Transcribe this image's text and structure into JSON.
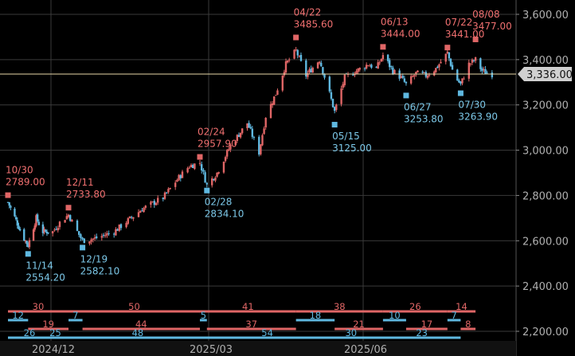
{
  "chart_data": {
    "type": "candlestick",
    "title": "",
    "xlabel": "",
    "ylabel": "",
    "ylim": [
      2175,
      3640
    ],
    "y_ticks": [
      "3,600.00",
      "3,400.00",
      "3,200.00",
      "3,000.00",
      "2,800.00",
      "2,600.00",
      "2,400.00",
      "2,200.00"
    ],
    "y_tick_values": [
      3600,
      3400,
      3200,
      3000,
      2800,
      2600,
      2400,
      2200
    ],
    "x_ticks": [
      "2024/12",
      "2025/03",
      "2025/06"
    ],
    "current_price_label": "3,336.00",
    "current_price": 3336,
    "colors": {
      "up": "#e06666",
      "down": "#5fb8e0",
      "current_line": "#e8d8a8",
      "current_label_bg": "#d0d0d0"
    },
    "grid": true,
    "close_series": [
      {
        "date": "2024/10/30",
        "close": 2770
      },
      {
        "date": "2024/11/05",
        "close": 2690
      },
      {
        "date": "2024/11/10",
        "close": 2620
      },
      {
        "date": "2024/11/14",
        "close": 2580
      },
      {
        "date": "2024/11/20",
        "close": 2700
      },
      {
        "date": "2024/11/25",
        "close": 2640
      },
      {
        "date": "2024/12/02",
        "close": 2640
      },
      {
        "date": "2024/12/06",
        "close": 2680
      },
      {
        "date": "2024/12/11",
        "close": 2715
      },
      {
        "date": "2024/12/16",
        "close": 2640
      },
      {
        "date": "2024/12/19",
        "close": 2600
      },
      {
        "date": "2024/12/26",
        "close": 2610
      },
      {
        "date": "2025/01/06",
        "close": 2640
      },
      {
        "date": "2025/01/14",
        "close": 2690
      },
      {
        "date": "2025/01/22",
        "close": 2740
      },
      {
        "date": "2025/02/03",
        "close": 2790
      },
      {
        "date": "2025/02/12",
        "close": 2880
      },
      {
        "date": "2025/02/18",
        "close": 2930
      },
      {
        "date": "2025/02/24",
        "close": 2945
      },
      {
        "date": "2025/02/28",
        "close": 2845
      },
      {
        "date": "2025/03/06",
        "close": 2900
      },
      {
        "date": "2025/03/14",
        "close": 3020
      },
      {
        "date": "2025/03/24",
        "close": 3120
      },
      {
        "date": "2025/03/31",
        "close": 2990
      },
      {
        "date": "2025/04/04",
        "close": 3150
      },
      {
        "date": "2025/04/10",
        "close": 3250
      },
      {
        "date": "2025/04/16",
        "close": 3380
      },
      {
        "date": "2025/04/22",
        "close": 3440
      },
      {
        "date": "2025/04/28",
        "close": 3330
      },
      {
        "date": "2025/05/06",
        "close": 3400
      },
      {
        "date": "2025/05/12",
        "close": 3250
      },
      {
        "date": "2025/05/15",
        "close": 3170
      },
      {
        "date": "2025/05/21",
        "close": 3320
      },
      {
        "date": "2025/05/28",
        "close": 3350
      },
      {
        "date": "2025/06/04",
        "close": 3380
      },
      {
        "date": "2025/06/09",
        "close": 3360
      },
      {
        "date": "2025/06/13",
        "close": 3420
      },
      {
        "date": "2025/06/19",
        "close": 3350
      },
      {
        "date": "2025/06/24",
        "close": 3320
      },
      {
        "date": "2025/06/27",
        "close": 3290
      },
      {
        "date": "2025/07/03",
        "close": 3340
      },
      {
        "date": "2025/07/09",
        "close": 3330
      },
      {
        "date": "2025/07/15",
        "close": 3360
      },
      {
        "date": "2025/07/22",
        "close": 3430
      },
      {
        "date": "2025/07/26",
        "close": 3330
      },
      {
        "date": "2025/07/30",
        "close": 3290
      },
      {
        "date": "2025/08/04",
        "close": 3380
      },
      {
        "date": "2025/08/08",
        "close": 3400
      },
      {
        "date": "2025/08/12",
        "close": 3350
      },
      {
        "date": "2025/08/18",
        "close": 3336
      }
    ],
    "annotations": [
      {
        "type": "high",
        "date": "10/30",
        "price": "2789.00",
        "value": 2789
      },
      {
        "type": "low",
        "date": "11/14",
        "price": "2554.20",
        "value": 2554.2
      },
      {
        "type": "high",
        "date": "12/11",
        "price": "2733.80",
        "value": 2733.8
      },
      {
        "type": "low",
        "date": "12/19",
        "price": "2582.10",
        "value": 2582.1
      },
      {
        "type": "high",
        "date": "02/24",
        "price": "2957.90",
        "value": 2957.9
      },
      {
        "type": "low",
        "date": "02/28",
        "price": "2834.10",
        "value": 2834.1
      },
      {
        "type": "high",
        "date": "04/22",
        "price": "3485.60",
        "value": 3485.6
      },
      {
        "type": "low",
        "date": "05/15",
        "price": "3125.00",
        "value": 3125
      },
      {
        "type": "high",
        "date": "06/13",
        "price": "3444.00",
        "value": 3444
      },
      {
        "type": "low",
        "date": "06/27",
        "price": "3253.80",
        "value": 3253.8
      },
      {
        "type": "high",
        "date": "07/22",
        "price": "3441.00",
        "value": 3441
      },
      {
        "type": "low",
        "date": "07/30",
        "price": "3263.90",
        "value": 3263.9
      },
      {
        "type": "high",
        "date": "08/08",
        "price": "3477.00",
        "value": 3477
      }
    ],
    "count_bands": [
      {
        "color": "#e06666",
        "segments": [
          {
            "from": "2024/10/30",
            "to": "2024/12/11",
            "label": "30"
          },
          {
            "from": "2024/12/11",
            "to": "2025/02/24",
            "label": "50"
          },
          {
            "from": "2025/02/24",
            "to": "2025/04/22",
            "label": "41"
          },
          {
            "from": "2025/04/22",
            "to": "2025/06/13",
            "label": "38"
          },
          {
            "from": "2025/06/13",
            "to": "2025/07/22",
            "label": "26"
          },
          {
            "from": "2025/07/22",
            "to": "2025/08/08",
            "label": "14"
          }
        ]
      },
      {
        "color": "#5fb8e0",
        "segments": [
          {
            "from": "2024/10/30",
            "to": "2024/11/14",
            "label": "12"
          },
          {
            "from": "2024/12/11",
            "to": "2024/12/19",
            "label": "7"
          },
          {
            "from": "2025/02/24",
            "to": "2025/02/28",
            "label": "5"
          },
          {
            "from": "2025/04/22",
            "to": "2025/05/15",
            "label": "18"
          },
          {
            "from": "2025/06/13",
            "to": "2025/06/27",
            "label": "10"
          },
          {
            "from": "2025/07/22",
            "to": "2025/07/30",
            "label": "7"
          }
        ]
      },
      {
        "color": "#e06666",
        "segments": [
          {
            "from": "2024/11/14",
            "to": "2024/12/11",
            "label": "19"
          },
          {
            "from": "2024/12/19",
            "to": "2025/02/24",
            "label": "44"
          },
          {
            "from": "2025/02/28",
            "to": "2025/04/22",
            "label": "37"
          },
          {
            "from": "2025/05/15",
            "to": "2025/06/13",
            "label": "21"
          },
          {
            "from": "2025/06/27",
            "to": "2025/07/22",
            "label": "17"
          },
          {
            "from": "2025/07/30",
            "to": "2025/08/08",
            "label": "8"
          }
        ]
      },
      {
        "color": "#5fb8e0",
        "segments": [
          {
            "from": "2024/10/30",
            "to": "2024/12/01",
            "label": "26"
          },
          {
            "from": "2024/11/14",
            "to": "2024/12/19",
            "label": "25"
          },
          {
            "from": "2024/12/11",
            "to": "2025/02/28",
            "label": "48"
          },
          {
            "from": "2025/02/24",
            "to": "2025/05/15",
            "label": "54"
          },
          {
            "from": "2025/04/22",
            "to": "2025/06/27",
            "label": "30"
          },
          {
            "from": "2025/06/13",
            "to": "2025/07/30",
            "label": "23"
          }
        ]
      }
    ]
  }
}
